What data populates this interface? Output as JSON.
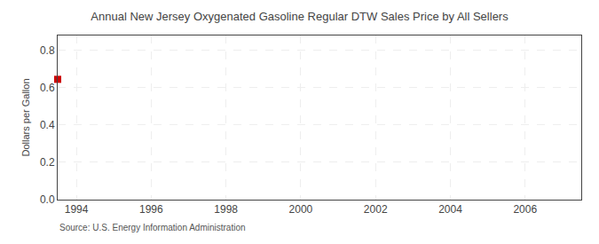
{
  "chart_data": {
    "type": "scatter",
    "title": "Annual New Jersey Oxygenated Gasoline Regular DTW Sales Price by All Sellers",
    "y_label": "Dollars per Gallon",
    "annotations": [
      "Source: U.S. Energy Information Administration"
    ],
    "x": [
      1993.5
    ],
    "values": [
      0.645
    ],
    "color": "#cc0000",
    "marker": "square",
    "xlim": [
      1993.5,
      2007.5
    ],
    "ylim": [
      0.0,
      0.88
    ],
    "xticks": [
      1994,
      1996,
      1998,
      2000,
      2002,
      2004,
      2006
    ],
    "yticks": [
      {
        "value": 0.0,
        "label": "0.0"
      },
      0.2,
      0.4,
      0.6,
      0.8
    ],
    "grid": true
  }
}
